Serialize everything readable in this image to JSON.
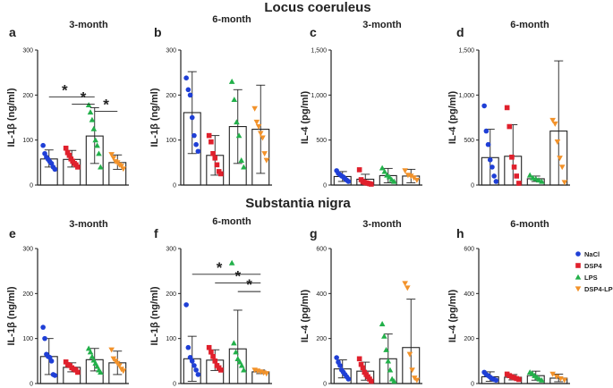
{
  "figure": {
    "section_top": "Locus coeruleus",
    "section_bottom": "Substantia nigra"
  },
  "colors": {
    "NaCl": "#1f3fd6",
    "DSP4": "#e0202c",
    "LPS": "#22b04a",
    "DSP4-LPS": "#f2922a",
    "axis": "#222222"
  },
  "legend": {
    "items": [
      {
        "label": "NaCl",
        "series": "NaCl",
        "marker": "circle"
      },
      {
        "label": "DSP4",
        "series": "DSP4",
        "marker": "square"
      },
      {
        "label": "LPS",
        "series": "LPS",
        "marker": "triangle"
      },
      {
        "label": "DSP4-LPS",
        "series": "DSP4-LPS",
        "marker": "triangle-down"
      }
    ]
  },
  "chart_data": [
    {
      "id": "a",
      "label": "a",
      "type": "bar",
      "title": "3-month",
      "ylabel": "IL-1β (ng/ml)",
      "ylim": [
        0,
        300
      ],
      "yticks": [
        "0",
        "100",
        "200",
        "300"
      ],
      "categories": [
        "NaCl",
        "DSP4",
        "LPS",
        "DSP4-LPS"
      ],
      "means": [
        58,
        57,
        109,
        50
      ],
      "err_high": [
        78,
        77,
        172,
        67
      ],
      "err_low": [
        40,
        40,
        48,
        35
      ],
      "points": [
        [
          88,
          70,
          62,
          57,
          52,
          48,
          40,
          35
        ],
        [
          82,
          72,
          66,
          58,
          53,
          48,
          45,
          40
        ],
        [
          178,
          162,
          145,
          125,
          100,
          88,
          70,
          40
        ],
        [
          68,
          60,
          52,
          50,
          45,
          42,
          36
        ]
      ],
      "significance": [
        {
          "from": 0,
          "to": 2,
          "symbol": "*",
          "level": 1
        },
        {
          "from": 1,
          "to": 2,
          "symbol": "*",
          "level": 2
        },
        {
          "from": 2,
          "to": 3,
          "symbol": "*",
          "level": 3
        }
      ]
    },
    {
      "id": "b",
      "label": "b",
      "type": "bar",
      "title": "6-month",
      "ylabel": "IL-1β (ng/ml)",
      "ylim": [
        0,
        300
      ],
      "yticks": [
        "0",
        "100",
        "200",
        "300"
      ],
      "categories": [
        "NaCl",
        "DSP4",
        "LPS",
        "DSP4-LPS"
      ],
      "means": [
        161,
        66,
        130,
        124
      ],
      "err_high": [
        252,
        110,
        212,
        222
      ],
      "err_low": [
        70,
        22,
        48,
        26
      ],
      "points": [
        [
          238,
          212,
          200,
          150,
          110,
          90,
          75
        ],
        [
          110,
          96,
          70,
          60,
          45,
          30,
          25
        ],
        [
          230,
          190,
          140,
          110,
          55,
          40
        ],
        [
          170,
          140,
          130,
          115,
          105,
          70,
          55
        ]
      ],
      "significance": []
    },
    {
      "id": "c",
      "label": "c",
      "type": "bar",
      "title": "3-month",
      "ylabel": "IL-4 (pg/ml)",
      "ylim": [
        0,
        1500
      ],
      "yticks": [
        "0",
        "500",
        "1,000",
        "1,500"
      ],
      "categories": [
        "NaCl",
        "DSP4",
        "LPS",
        "DSP4-LPS"
      ],
      "means": [
        95,
        65,
        105,
        100
      ],
      "err_high": [
        150,
        120,
        185,
        175
      ],
      "err_low": [
        40,
        10,
        25,
        25
      ],
      "points": [
        [
          160,
          130,
          115,
          100,
          90,
          70,
          55,
          40
        ],
        [
          170,
          60,
          40,
          30,
          25,
          20,
          15,
          10
        ],
        [
          190,
          150,
          110,
          90,
          60,
          40
        ],
        [
          160,
          110,
          100,
          80,
          55
        ]
      ],
      "significance": []
    },
    {
      "id": "d",
      "label": "d",
      "type": "bar",
      "title": "6-month",
      "ylabel": "IL-4 (pg/ml)",
      "ylim": [
        0,
        1500
      ],
      "yticks": [
        "0",
        "500",
        "1,000",
        "1,500"
      ],
      "categories": [
        "NaCl",
        "DSP4",
        "LPS",
        "DSP4-LPS"
      ],
      "means": [
        305,
        320,
        70,
        600
      ],
      "err_high": [
        620,
        670,
        100,
        1380
      ],
      "err_low": [
        0,
        0,
        40,
        0
      ],
      "points": [
        [
          880,
          600,
          450,
          280,
          200,
          100,
          40
        ],
        [
          860,
          650,
          310,
          200,
          100,
          20
        ],
        [
          110,
          80,
          70,
          55,
          40
        ],
        [
          720,
          680,
          480,
          300,
          200,
          30
        ]
      ],
      "significance": []
    },
    {
      "id": "e",
      "label": "e",
      "type": "bar",
      "title": "3-month",
      "ylabel": "IL-1β (ng/ml)",
      "ylim": [
        0,
        300
      ],
      "yticks": [
        "0",
        "100",
        "200",
        "300"
      ],
      "categories": [
        "NaCl",
        "DSP4",
        "LPS",
        "DSP4-LPS"
      ],
      "means": [
        60,
        36,
        53,
        46
      ],
      "err_high": [
        100,
        46,
        78,
        72
      ],
      "err_low": [
        20,
        26,
        28,
        20
      ],
      "points": [
        [
          125,
          100,
          65,
          60,
          58,
          50,
          20,
          18
        ],
        [
          48,
          42,
          40,
          35,
          32,
          30,
          25
        ],
        [
          78,
          70,
          60,
          52,
          45,
          38,
          30,
          25
        ],
        [
          75,
          55,
          50,
          45,
          40,
          32,
          28
        ]
      ],
      "significance": []
    },
    {
      "id": "f",
      "label": "f",
      "type": "bar",
      "title": "6-month",
      "ylabel": "IL-1β (ng/ml)",
      "ylim": [
        0,
        300
      ],
      "yticks": [
        "0",
        "100",
        "200",
        "300"
      ],
      "categories": [
        "NaCl",
        "DSP4",
        "LPS",
        "DSP4-LPS"
      ],
      "means": [
        55,
        52,
        77,
        26
      ],
      "err_high": [
        105,
        75,
        163,
        30
      ],
      "err_low": [
        5,
        29,
        0,
        22
      ],
      "points": [
        [
          175,
          80,
          58,
          50,
          40,
          30,
          20
        ],
        [
          80,
          70,
          60,
          50,
          40,
          35,
          30
        ],
        [
          268,
          90,
          70,
          55,
          48,
          40,
          30
        ],
        [
          30,
          28,
          26,
          24,
          22
        ]
      ],
      "significance": [
        {
          "from": 0,
          "to": 3,
          "symbol": "*",
          "level": 1
        },
        {
          "from": 1,
          "to": 3,
          "symbol": "*",
          "level": 2
        },
        {
          "from": 2,
          "to": 3,
          "symbol": "*",
          "level": 3
        }
      ]
    },
    {
      "id": "g",
      "label": "g",
      "type": "bar",
      "title": "3-month",
      "ylabel": "IL-4 (pg/ml)",
      "ylim": [
        0,
        600
      ],
      "yticks": [
        "0",
        "200",
        "400",
        "600"
      ],
      "categories": [
        "NaCl",
        "DSP4",
        "LPS",
        "DSP4-LPS"
      ],
      "means": [
        65,
        55,
        110,
        160
      ],
      "err_high": [
        105,
        95,
        220,
        375
      ],
      "err_low": [
        25,
        15,
        0,
        0
      ],
      "points": [
        [
          115,
          95,
          80,
          60,
          50,
          40,
          30,
          20
        ],
        [
          110,
          85,
          70,
          50,
          40,
          30,
          20,
          10
        ],
        [
          265,
          210,
          150,
          100,
          60,
          20,
          10
        ],
        [
          445,
          425,
          130,
          60,
          25,
          15
        ]
      ],
      "significance": []
    },
    {
      "id": "h",
      "label": "h",
      "type": "bar",
      "title": "6-month",
      "ylabel": "IL-4 (pg/ml)",
      "ylim": [
        0,
        600
      ],
      "yticks": [
        "0",
        "200",
        "400",
        "600"
      ],
      "categories": [
        "NaCl",
        "DSP4",
        "LPS",
        "DSP4-LPS"
      ],
      "means": [
        30,
        28,
        35,
        24
      ],
      "err_high": [
        52,
        40,
        55,
        42
      ],
      "err_low": [
        10,
        16,
        15,
        8
      ],
      "points": [
        [
          50,
          40,
          35,
          28,
          22,
          18,
          15
        ],
        [
          42,
          35,
          30,
          26,
          22,
          18
        ],
        [
          50,
          45,
          35,
          28,
          20,
          15
        ],
        [
          42,
          30,
          22,
          15
        ]
      ],
      "significance": []
    }
  ]
}
